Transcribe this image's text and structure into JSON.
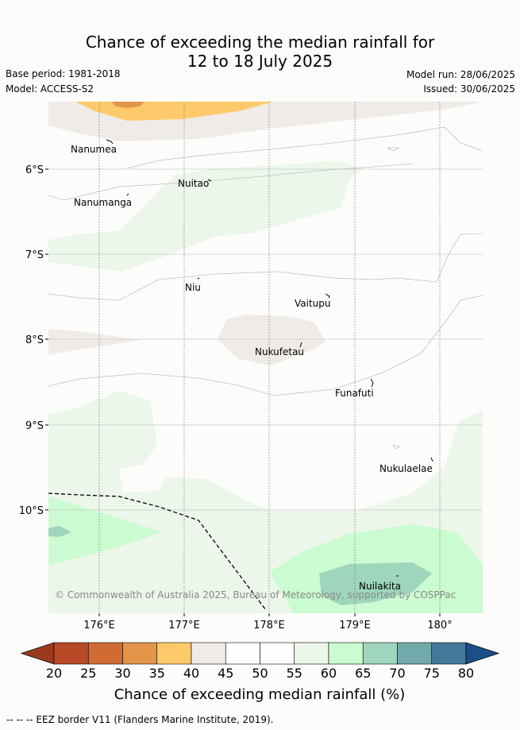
{
  "title": {
    "line1": "Chance of exceeding the median rainfall for",
    "line2": "12 to 18 July 2025"
  },
  "meta": {
    "base_period": "Base period: 1981-2018",
    "model": "Model: ACCESS-S2",
    "model_run": "Model run: 28/06/2025",
    "issued": "Issued: 30/06/2025"
  },
  "map": {
    "lat_labels": [
      "6°S",
      "7°S",
      "8°S",
      "9°S",
      "10°S"
    ],
    "lon_labels": [
      "176°E",
      "177°E",
      "178°E",
      "179°E",
      "180°"
    ],
    "places": [
      "Nanumea",
      "Nuitao",
      "Nanumanga",
      "Niu",
      "Vaitupu",
      "Nukufetau",
      "Funafuti",
      "Nukulaelae",
      "Nuilakita"
    ],
    "copyright": "© Commonwealth of Australia 2025, Bureau of Meteorology, supported by COSPPac"
  },
  "colorbar": {
    "ticks": [
      "20",
      "25",
      "30",
      "35",
      "40",
      "45",
      "50",
      "55",
      "60",
      "65",
      "70",
      "75",
      "80"
    ],
    "colors": [
      "#b84a27",
      "#d16b34",
      "#e39549",
      "#fdca6b",
      "#f0ebe7",
      "#fdfefd",
      "#fdfefd",
      "#ecf6eb",
      "#cbfbd0",
      "#9fd5bd",
      "#72a9aa",
      "#44799b"
    ],
    "under_color": "#9b3a1f",
    "over_color": "#1c4e88",
    "label": "Chance of exceeding median rainfall (%)"
  },
  "footer": {
    "legend_line": "-- -- -- EEZ border V11 (Flanders Marine Institute, 2019)."
  }
}
